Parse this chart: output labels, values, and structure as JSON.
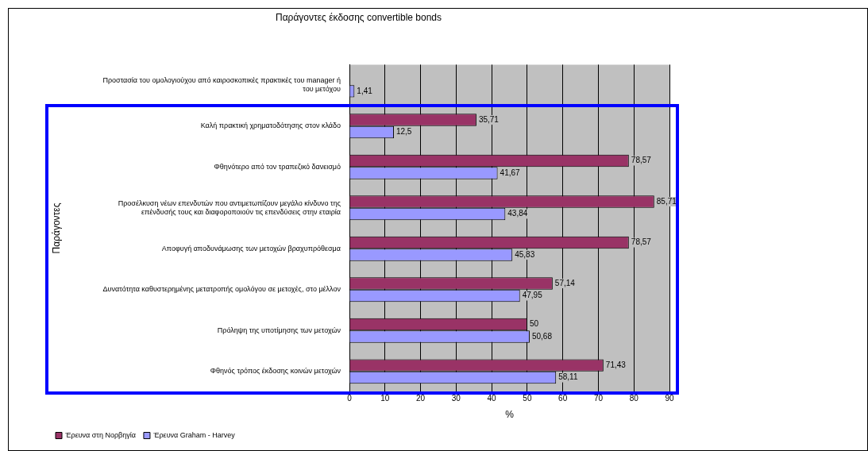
{
  "chart_data": {
    "type": "bar",
    "orientation": "horizontal",
    "title": "Παράγοντες έκδοσης convertible bonds",
    "xlabel": "%",
    "ylabel": "Παράγοντες",
    "categories": [
      "Προστασία του ομολογιούχου από καιροσκοπικές πρακτικές του manager ή του μετόχου",
      "Καλή πρακτική χρηματοδότησης στον κλάδο",
      "Φθηνότερο από τον τραπεζικό δανεισμό",
      "Προσέλκυση νέων επενδυτών που αντιμετωπίζουν μεγάλο κίνδυνο της επένδυσής τους και διαφοροποιούν τις επενδύσεις στην εταιρία",
      "Αποφυγή αποδυνάμωσης των μετοχών βραχυπρόθεσμα",
      "Δυνατότητα καθυστερημένης μετατροπής ομολόγου σε μετοχές, στο μέλλον",
      "Πρόληψη της υποτίμησης των μετοχών",
      "Φθηνός τρόπος έκδοσης κοινών μετοχών"
    ],
    "series": [
      {
        "name": "Έρευνα στη Νορβηγία",
        "color": "#993366",
        "values": [
          null,
          35.71,
          78.57,
          85.71,
          78.57,
          57.14,
          50,
          71.43
        ],
        "value_labels": [
          null,
          "35,71",
          "78,57",
          "85,71",
          "78,57",
          "57,14",
          "50",
          "71,43"
        ]
      },
      {
        "name": "Έρευνα Graham - Harvey",
        "color": "#9999ff",
        "values": [
          1.41,
          12.5,
          41.67,
          43.84,
          45.83,
          47.95,
          50.68,
          58.11
        ],
        "value_labels": [
          "1,41",
          "12,5",
          "41,67",
          "43,84",
          "45,83",
          "47,95",
          "50,68",
          "58,11"
        ]
      }
    ],
    "xlim": [
      0,
      90
    ],
    "xticks": [
      0,
      10,
      20,
      30,
      40,
      50,
      60,
      70,
      80,
      90
    ],
    "grid": "x",
    "legend": "bottom left"
  }
}
